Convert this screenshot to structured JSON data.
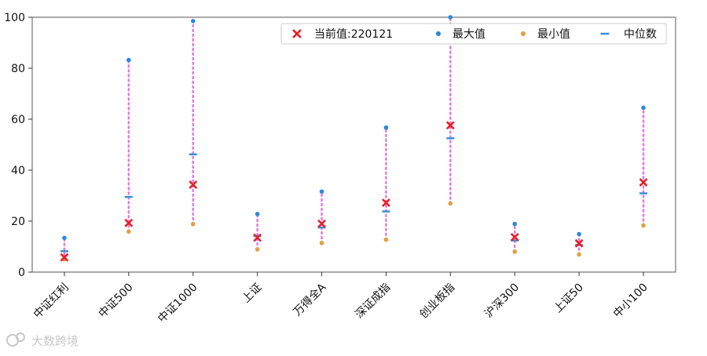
{
  "chart_data": {
    "type": "scatter",
    "categories": [
      "中证红利",
      "中证500",
      "中证1000",
      "上证",
      "万得全A",
      "深证成指",
      "创业板指",
      "沪深300",
      "上证50",
      "中小100"
    ],
    "series": [
      {
        "name": "当前值:220121",
        "marker": "x",
        "color": "#e8202a",
        "values": [
          5.8,
          19.3,
          34.3,
          13.5,
          19.0,
          27.2,
          57.6,
          13.7,
          11.3,
          35.2
        ]
      },
      {
        "name": "最大值",
        "marker": "dot",
        "color": "#2e86de",
        "values": [
          13.4,
          83.2,
          98.5,
          22.8,
          31.6,
          56.7,
          100,
          18.9,
          14.9,
          64.5
        ]
      },
      {
        "name": "最小值",
        "marker": "dot",
        "color": "#e0a040",
        "values": [
          5.0,
          15.9,
          18.8,
          8.9,
          11.4,
          12.7,
          26.9,
          8.0,
          6.9,
          18.3
        ]
      },
      {
        "name": "中位数",
        "marker": "dash",
        "color": "#3a8fd9",
        "values": [
          8.2,
          29.5,
          46.2,
          14.2,
          17.5,
          23.8,
          52.5,
          12.4,
          10.6,
          30.9
        ]
      }
    ],
    "range_line_color": "#e07be0",
    "ylim": [
      0,
      100
    ],
    "yticks": [
      0,
      20,
      40,
      60,
      80,
      100
    ],
    "xlabel": "",
    "ylabel": "",
    "title": "",
    "grid": false,
    "legend_position": "top-right"
  },
  "watermark": {
    "text": "大数跨境",
    "icon": "logo-icon"
  }
}
